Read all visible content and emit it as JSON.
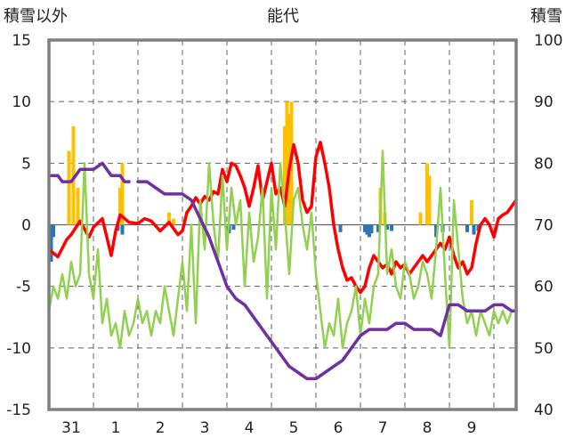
{
  "chart_data": {
    "type": "line",
    "title": "能代",
    "y_left_label": "積雪以外",
    "y_right_label": "積雪",
    "y_left_range": [
      -15,
      15
    ],
    "y_left_ticks": [
      "15",
      "10",
      "5",
      "0",
      "-5",
      "-10",
      "-15"
    ],
    "y_right_range": [
      40,
      100
    ],
    "y_right_ticks": [
      "100",
      "90",
      "80",
      "70",
      "60",
      "50",
      "40"
    ],
    "x_range": [
      0,
      10.5
    ],
    "x_ticks": [
      {
        "pos": 0.5,
        "label": "31"
      },
      {
        "pos": 1.5,
        "label": "1"
      },
      {
        "pos": 2.5,
        "label": "2"
      },
      {
        "pos": 3.5,
        "label": "3"
      },
      {
        "pos": 4.5,
        "label": "4"
      },
      {
        "pos": 5.5,
        "label": "5"
      },
      {
        "pos": 6.5,
        "label": "6"
      },
      {
        "pos": 7.5,
        "label": "7"
      },
      {
        "pos": 8.5,
        "label": "8"
      },
      {
        "pos": 9.5,
        "label": "9"
      }
    ],
    "colors": {
      "temperature": "#ff0000",
      "snow_depth": "#7030a0",
      "wind": "#92d050",
      "snowfall": "#ffc000",
      "precip": "#2e75b6",
      "grid": "#606060",
      "frame": "#7f7f7f"
    },
    "series": [
      {
        "color": "#ff0000",
        "axis": "left",
        "x": [
          0.0,
          0.2,
          0.4,
          0.5,
          0.7,
          0.9,
          1.0,
          1.2,
          1.4,
          1.5,
          1.6,
          1.8,
          2.0,
          2.15,
          2.3,
          2.5,
          2.7,
          2.9,
          3.0,
          3.1,
          3.2,
          3.3,
          3.4,
          3.5,
          3.6,
          3.7,
          3.8,
          3.9,
          4.0,
          4.1,
          4.2,
          4.3,
          4.4,
          4.5,
          4.6,
          4.7,
          4.8,
          4.9,
          5.0,
          5.1,
          5.2,
          5.3,
          5.4,
          5.5,
          5.6,
          5.7,
          5.8,
          5.9,
          6.0,
          6.1,
          6.2,
          6.3,
          6.4,
          6.5,
          6.6,
          6.7,
          6.8,
          6.9,
          7.0,
          7.1,
          7.2,
          7.3,
          7.4,
          7.5,
          7.6,
          7.7,
          7.8,
          7.9,
          8.0,
          8.1,
          8.2,
          8.3,
          8.4,
          8.5,
          8.6,
          8.7,
          8.8,
          8.9,
          9.0,
          9.1,
          9.2,
          9.3,
          9.4,
          9.5,
          9.6,
          9.7,
          9.8,
          9.9,
          10.0,
          10.1,
          10.2,
          10.3,
          10.4,
          10.5
        ],
        "y": [
          -2,
          -2.6,
          -1.2,
          -0.8,
          0.3,
          -1,
          -0.2,
          0.5,
          -2.5,
          -0.5,
          0.8,
          0.2,
          0.1,
          0.5,
          0.3,
          -0.5,
          0.2,
          -0.8,
          -0.5,
          1,
          1.5,
          2.2,
          1.7,
          2.3,
          2.0,
          2.7,
          2.5,
          4.5,
          3.5,
          5.0,
          4.8,
          4.0,
          3.0,
          1.5,
          3.0,
          4.8,
          2.0,
          3.5,
          5.0,
          2.5,
          3.0,
          1.5,
          4.5,
          6.5,
          5.0,
          2.0,
          1.0,
          1.5,
          5.5,
          6.7,
          5.0,
          3.0,
          0.0,
          -2.0,
          -3.5,
          -4.5,
          -4.3,
          -5.0,
          -5.5,
          -5.0,
          -3.5,
          -2.5,
          -3.0,
          -3.5,
          -3.2,
          -4.0,
          -3.0,
          -3.5,
          -3.2,
          -4.0,
          -3.5,
          -3.0,
          -2.5,
          -3.0,
          -2.5,
          -2.0,
          -1.5,
          -2.0,
          -1.0,
          -2.5,
          -3.5,
          -3.0,
          -4.0,
          -3.5,
          -1.5,
          0.0,
          0.5,
          0.0,
          -1.0,
          0.5,
          0.8,
          1.0,
          1.5,
          2.0
        ]
      },
      {
        "color": "#92d050",
        "axis": "left",
        "x": [
          0.0,
          0.1,
          0.2,
          0.3,
          0.4,
          0.5,
          0.6,
          0.7,
          0.8,
          0.9,
          1.0,
          1.1,
          1.2,
          1.3,
          1.4,
          1.5,
          1.6,
          1.7,
          1.8,
          1.9,
          2.0,
          2.1,
          2.2,
          2.3,
          2.4,
          2.5,
          2.6,
          2.7,
          2.8,
          2.9,
          3.0,
          3.1,
          3.2,
          3.3,
          3.4,
          3.5,
          3.6,
          3.7,
          3.8,
          3.9,
          4.0,
          4.1,
          4.2,
          4.3,
          4.4,
          4.5,
          4.6,
          4.7,
          4.8,
          4.9,
          5.0,
          5.1,
          5.2,
          5.3,
          5.4,
          5.5,
          5.6,
          5.7,
          5.8,
          5.9,
          6.0,
          6.1,
          6.2,
          6.3,
          6.4,
          6.5,
          6.6,
          6.7,
          6.8,
          6.9,
          7.0,
          7.1,
          7.2,
          7.3,
          7.4,
          7.5,
          7.6,
          7.7,
          7.8,
          7.9,
          8.0,
          8.1,
          8.2,
          8.3,
          8.4,
          8.5,
          8.6,
          8.7,
          8.8,
          8.9,
          9.0,
          9.1,
          9.2,
          9.3,
          9.4,
          9.5,
          9.6,
          9.7,
          9.8,
          9.9,
          10.0,
          10.1,
          10.2,
          10.3,
          10.4,
          10.5
        ],
        "y": [
          -7,
          -5,
          -6,
          -4,
          -6,
          -3,
          -5,
          -4,
          5,
          -4,
          -6,
          -2,
          -8,
          -6,
          -9,
          -8,
          -10,
          -7,
          -9,
          -8,
          -6,
          -8,
          -7,
          -9,
          -7,
          -8,
          -5,
          -7,
          -9,
          -6,
          -3,
          -7,
          0,
          -8,
          2,
          -2,
          5,
          0,
          -3,
          4,
          -2,
          3,
          0,
          2,
          -5,
          1,
          -3,
          -1,
          3,
          -6,
          3,
          -2,
          5,
          1,
          -4,
          2,
          3,
          0,
          -2,
          1,
          -4,
          -7,
          -10,
          -8,
          -9,
          -6,
          -10,
          -8,
          -7,
          -5,
          -9,
          -6,
          -8,
          -5,
          -4,
          6,
          -4,
          -2,
          -5,
          -6,
          -3,
          -4,
          -6,
          -5,
          -3,
          -4,
          -6,
          -2,
          3,
          -4,
          -10,
          2,
          -2,
          -6,
          -8,
          -7,
          -9,
          -7,
          -8,
          -9,
          -7,
          -8,
          -7,
          -8,
          -7,
          -7
        ]
      },
      {
        "color": "#7030a0",
        "axis": "right",
        "x": [
          0.0,
          0.2,
          0.3,
          0.5,
          0.7,
          0.9,
          1.0,
          1.2,
          1.4,
          1.6,
          1.7,
          1.8,
          1.85,
          2.0,
          2.2,
          2.4,
          2.6,
          2.8,
          3.0,
          3.2,
          3.4,
          3.6,
          3.8,
          4.0,
          4.2,
          4.4,
          4.6,
          4.8,
          5.0,
          5.2,
          5.4,
          5.6,
          5.8,
          6.0,
          6.2,
          6.4,
          6.6,
          6.8,
          7.0,
          7.2,
          7.4,
          7.6,
          7.8,
          8.0,
          8.2,
          8.4,
          8.6,
          8.8,
          9.0,
          9.2,
          9.4,
          9.6,
          9.8,
          10.0,
          10.2,
          10.4,
          10.5
        ],
        "y": [
          78,
          78,
          77,
          77,
          79,
          79,
          79,
          80,
          78,
          78,
          77,
          77,
          null,
          77,
          77,
          76,
          75,
          75,
          75,
          74,
          71,
          68,
          64,
          60,
          58,
          57,
          55,
          53,
          51,
          49,
          47,
          46,
          45,
          45,
          46,
          47,
          48,
          50,
          52,
          53,
          53,
          53,
          54,
          54,
          53,
          53,
          53,
          52,
          57,
          57,
          56,
          56,
          56,
          57,
          57,
          56,
          56
        ]
      },
      {
        "color": "#ffc000",
        "axis": "left",
        "kind": "bar",
        "x": [
          0.45,
          0.55,
          0.65,
          1.6,
          1.65,
          2.7,
          2.8,
          5.3,
          5.35,
          5.4,
          5.45,
          7.45,
          7.55,
          8.35,
          8.5,
          8.55,
          9.5
        ],
        "y": [
          6,
          8,
          3,
          3,
          5,
          1,
          0.5,
          8,
          10,
          9,
          10,
          3,
          1,
          1,
          5,
          4,
          2
        ]
      },
      {
        "color": "#2e75b6",
        "axis": "left",
        "kind": "bar",
        "x": [
          0.05,
          0.1,
          1.55,
          1.65,
          4.05,
          4.15,
          6.55,
          7.1,
          7.15,
          7.2,
          7.25,
          7.4,
          7.6,
          7.7,
          8.7,
          8.85,
          9.4,
          9.55,
          9.65
        ],
        "y": [
          -3,
          -1,
          -0.5,
          -0.8,
          -0.7,
          -0.4,
          -0.6,
          -0.6,
          -0.8,
          -1,
          -0.7,
          -0.6,
          -0.4,
          -0.5,
          -1,
          -0.6,
          -0.6,
          -0.8,
          -0.5
        ]
      }
    ]
  }
}
